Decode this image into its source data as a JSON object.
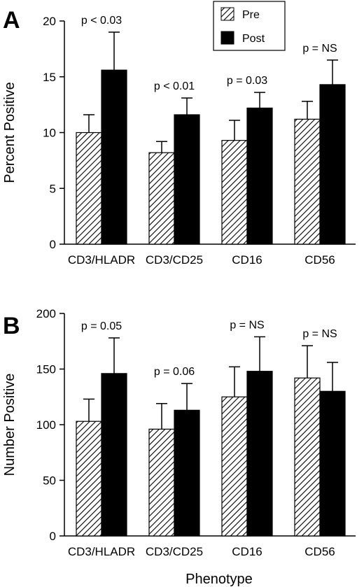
{
  "colors": {
    "pre_pattern": "hatched",
    "post_fill": "#000000",
    "axis": "#000000"
  },
  "legend": {
    "items": [
      "Pre",
      "Post"
    ],
    "placement": "top-center"
  },
  "chart_data": [
    {
      "panel": "A",
      "type": "bar",
      "categories": [
        "CD3/HLADR",
        "CD3/CD25",
        "CD16",
        "CD56"
      ],
      "ylabel": "Percent Positive",
      "xlabel": "",
      "ylim": [
        0,
        20
      ],
      "yticks": [
        "0",
        "5",
        "10",
        "15",
        "20"
      ],
      "series": [
        {
          "name": "Pre",
          "values": [
            10.0,
            8.2,
            9.3,
            11.2
          ],
          "errors": [
            1.6,
            1.0,
            1.8,
            1.6
          ]
        },
        {
          "name": "Post",
          "values": [
            15.6,
            11.6,
            12.2,
            14.3
          ],
          "errors": [
            3.4,
            1.5,
            1.4,
            2.2
          ]
        }
      ],
      "annotations": [
        "p < 0.03",
        "p < 0.01",
        "p = 0.03",
        "p = NS"
      ]
    },
    {
      "panel": "B",
      "type": "bar",
      "categories": [
        "CD3/HLADR",
        "CD3/CD25",
        "CD16",
        "CD56"
      ],
      "ylabel": "Number Positive",
      "xlabel": "Phenotype",
      "ylim": [
        0,
        200
      ],
      "yticks": [
        "0",
        "50",
        "100",
        "150",
        "200"
      ],
      "series": [
        {
          "name": "Pre",
          "values": [
            103,
            96,
            125,
            142
          ],
          "errors": [
            20,
            23,
            27,
            29
          ]
        },
        {
          "name": "Post",
          "values": [
            146,
            113,
            148,
            130
          ],
          "errors": [
            32,
            24,
            31,
            26
          ]
        }
      ],
      "annotations": [
        "p = 0.05",
        "p = 0.06",
        "p = NS",
        "p = NS"
      ]
    }
  ]
}
